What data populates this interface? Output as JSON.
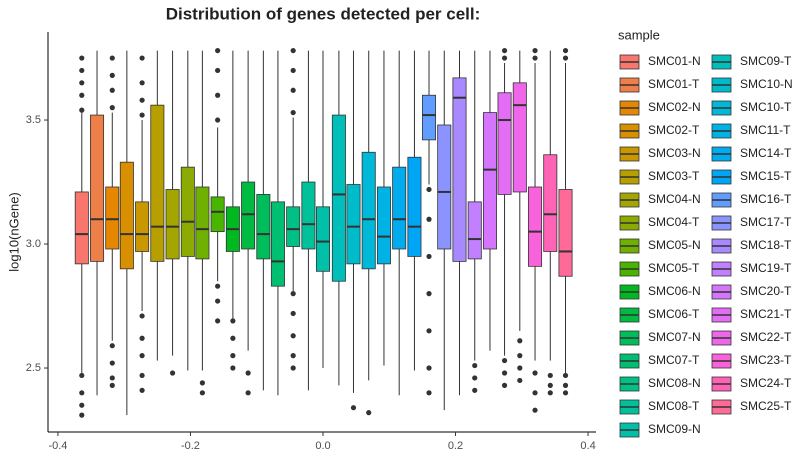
{
  "chart_data": {
    "type": "boxplot",
    "title": "Distribution of genes detected per cell:",
    "y_label": "log10(nGene)",
    "legend_title": "sample",
    "xlim": [
      -0.415,
      0.412
    ],
    "ylim": [
      2.242,
      3.855
    ],
    "xticks": [
      -0.4,
      -0.2,
      {
        "value": 0,
        "label": "0.0"
      },
      0.2,
      0.4
    ],
    "yticks": [
      2.5,
      {
        "value": 3,
        "label": "3.0"
      },
      3.5
    ],
    "series": [
      {
        "name": "SMC01-N",
        "color": "#F8766D",
        "x": -0.364,
        "stats": [
          2.48,
          2.92,
          3.04,
          3.21,
          3.53
        ],
        "outliers": [
          3.54,
          3.6,
          3.65,
          3.7,
          3.75,
          2.47,
          2.4,
          2.35,
          2.31
        ]
      },
      {
        "name": "SMC01-T",
        "color": "#EF7F49",
        "x": -0.341,
        "stats": [
          2.39,
          2.93,
          3.1,
          3.52,
          3.78
        ],
        "outliers": []
      },
      {
        "name": "SMC02-N",
        "color": "#E58700",
        "x": -0.318,
        "stats": [
          2.61,
          2.98,
          3.1,
          3.23,
          3.53
        ],
        "outliers": [
          3.55,
          3.62,
          3.68,
          3.75,
          2.59,
          2.52,
          2.46,
          2.43
        ]
      },
      {
        "name": "SMC02-T",
        "color": "#D89000",
        "x": -0.296,
        "stats": [
          2.31,
          2.9,
          3.04,
          3.33,
          3.78
        ],
        "outliers": []
      },
      {
        "name": "SMC03-N",
        "color": "#C99800",
        "x": -0.273,
        "stats": [
          2.73,
          2.97,
          3.04,
          3.17,
          3.5
        ],
        "outliers": [
          3.52,
          3.58,
          3.65,
          3.75,
          2.71,
          2.62,
          2.55,
          2.47,
          2.41
        ]
      },
      {
        "name": "SMC03-T",
        "color": "#B79F00",
        "x": -0.25,
        "stats": [
          2.53,
          2.93,
          3.07,
          3.56,
          3.78
        ],
        "outliers": []
      },
      {
        "name": "SMC04-N",
        "color": "#A3A500",
        "x": -0.227,
        "stats": [
          2.55,
          2.94,
          3.07,
          3.22,
          3.78
        ],
        "outliers": [
          2.48
        ]
      },
      {
        "name": "SMC04-T",
        "color": "#8CAB00",
        "x": -0.204,
        "stats": [
          2.49,
          2.95,
          3.09,
          3.31,
          3.78
        ],
        "outliers": []
      },
      {
        "name": "SMC05-N",
        "color": "#6FB000",
        "x": -0.182,
        "stats": [
          2.49,
          2.94,
          3.06,
          3.23,
          3.78
        ],
        "outliers": [
          2.44,
          2.4
        ]
      },
      {
        "name": "SMC05-T",
        "color": "#49B500",
        "x": -0.159,
        "stats": [
          2.85,
          3.05,
          3.13,
          3.19,
          3.47
        ],
        "outliers": [
          3.5,
          3.6,
          3.7,
          3.78,
          2.83,
          2.77,
          2.69
        ]
      },
      {
        "name": "SMC06-N",
        "color": "#00B81F",
        "x": -0.136,
        "stats": [
          2.7,
          2.97,
          3.06,
          3.15,
          3.78
        ],
        "outliers": [
          2.69,
          2.62,
          2.55,
          2.5
        ]
      },
      {
        "name": "SMC06-T",
        "color": "#00BA42",
        "x": -0.113,
        "stats": [
          2.57,
          2.98,
          3.12,
          3.25,
          3.78
        ],
        "outliers": [
          2.48,
          2.4
        ]
      },
      {
        "name": "SMC07-N",
        "color": "#00BD5C",
        "x": -0.09,
        "stats": [
          2.41,
          2.94,
          3.04,
          3.2,
          3.78
        ],
        "outliers": []
      },
      {
        "name": "SMC07-T",
        "color": "#00BE72",
        "x": -0.068,
        "stats": [
          2.39,
          2.83,
          2.93,
          3.17,
          3.78
        ],
        "outliers": []
      },
      {
        "name": "SMC08-N",
        "color": "#00C086",
        "x": -0.045,
        "stats": [
          2.81,
          2.99,
          3.06,
          3.15,
          3.51
        ],
        "outliers": [
          3.53,
          3.62,
          3.7,
          3.78,
          2.8,
          2.72,
          2.63,
          2.55,
          2.5
        ]
      },
      {
        "name": "SMC08-T",
        "color": "#00C199",
        "x": -0.022,
        "stats": [
          2.41,
          2.98,
          3.08,
          3.25,
          3.78
        ],
        "outliers": []
      },
      {
        "name": "SMC09-N",
        "color": "#00C0AA",
        "x": 0,
        "stats": [
          2.5,
          2.89,
          3.01,
          3.15,
          3.78
        ],
        "outliers": []
      },
      {
        "name": "SMC09-T",
        "color": "#00BFBB",
        "x": 0.024,
        "stats": [
          2.43,
          2.85,
          3.2,
          3.52,
          3.78
        ],
        "outliers": []
      },
      {
        "name": "SMC10-N",
        "color": "#00BCCA",
        "x": 0.046,
        "stats": [
          2.4,
          2.92,
          3.07,
          3.24,
          3.78
        ],
        "outliers": [
          2.34
        ]
      },
      {
        "name": "SMC10-T",
        "color": "#00B8D8",
        "x": 0.069,
        "stats": [
          2.45,
          2.9,
          3.1,
          3.37,
          3.78
        ],
        "outliers": [
          2.32
        ]
      },
      {
        "name": "SMC11-T",
        "color": "#00B3E4",
        "x": 0.092,
        "stats": [
          2.51,
          2.92,
          3.03,
          3.23,
          3.78
        ],
        "outliers": []
      },
      {
        "name": "SMC14-T",
        "color": "#00ACEE",
        "x": 0.115,
        "stats": [
          2.39,
          2.98,
          3.1,
          3.31,
          3.78
        ],
        "outliers": []
      },
      {
        "name": "SMC15-T",
        "color": "#00A5F6",
        "x": 0.138,
        "stats": [
          2.49,
          2.95,
          3.07,
          3.35,
          3.78
        ],
        "outliers": []
      },
      {
        "name": "SMC16-T",
        "color": "#619CFF",
        "x": 0.16,
        "stats": [
          3.24,
          3.42,
          3.52,
          3.6,
          3.78
        ],
        "outliers": [
          3.22,
          3.1,
          2.95,
          2.8,
          2.65,
          2.5,
          2.4
        ]
      },
      {
        "name": "SMC17-T",
        "color": "#8B93FF",
        "x": 0.183,
        "stats": [
          2.33,
          2.98,
          3.21,
          3.48,
          3.78
        ],
        "outliers": []
      },
      {
        "name": "SMC18-T",
        "color": "#A989FF",
        "x": 0.206,
        "stats": [
          2.39,
          2.93,
          3.59,
          3.67,
          3.78
        ],
        "outliers": []
      },
      {
        "name": "SMC19-T",
        "color": "#C27FFF",
        "x": 0.229,
        "stats": [
          2.53,
          2.94,
          3.02,
          3.17,
          3.78
        ],
        "outliers": [
          2.51,
          2.46,
          2.41
        ]
      },
      {
        "name": "SMC20-T",
        "color": "#D575FE",
        "x": 0.252,
        "stats": [
          2.57,
          2.98,
          3.3,
          3.53,
          3.78
        ],
        "outliers": []
      },
      {
        "name": "SMC21-T",
        "color": "#E46DF6",
        "x": 0.274,
        "stats": [
          2.55,
          3.2,
          3.5,
          3.61,
          3.73
        ],
        "outliers": [
          3.75,
          3.78,
          2.53,
          2.48,
          2.43
        ]
      },
      {
        "name": "SMC22-T",
        "color": "#F066EA",
        "x": 0.297,
        "stats": [
          2.65,
          3.21,
          3.56,
          3.65,
          3.78
        ],
        "outliers": [
          2.61,
          2.55,
          2.5,
          2.45
        ]
      },
      {
        "name": "SMC23-T",
        "color": "#FA62DB",
        "x": 0.32,
        "stats": [
          2.53,
          2.91,
          3.05,
          3.23,
          3.73
        ],
        "outliers": [
          3.75,
          3.78,
          2.48,
          2.4,
          2.33
        ]
      },
      {
        "name": "SMC24-T",
        "color": "#FF63B6",
        "x": 0.343,
        "stats": [
          2.53,
          2.97,
          3.12,
          3.36,
          3.78
        ],
        "outliers": [
          2.47,
          2.43,
          2.4
        ]
      },
      {
        "name": "SMC25-T",
        "color": "#FF6A98",
        "x": 0.366,
        "stats": [
          2.48,
          2.87,
          2.97,
          3.22,
          3.73
        ],
        "outliers": [
          3.75,
          3.78,
          2.47,
          2.43,
          2.4
        ]
      }
    ]
  }
}
